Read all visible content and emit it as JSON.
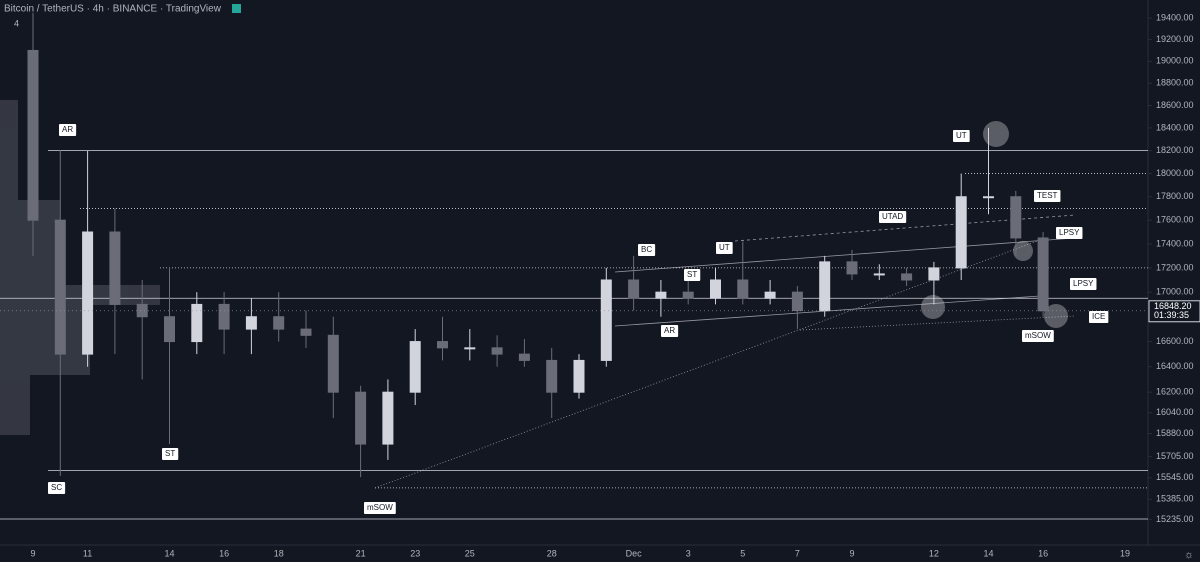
{
  "chart_data": {
    "type": "candlestick",
    "title": "Bitcoin / TetherUS · 4h · BINANCE · TradingView",
    "badge": "4",
    "categories": [
      "9",
      null,
      "11",
      null,
      null,
      "14",
      null,
      "16",
      null,
      "18",
      null,
      null,
      "21",
      null,
      "23",
      null,
      "25",
      null,
      null,
      "28",
      null,
      null,
      "Dec",
      null,
      "3",
      null,
      "5",
      null,
      "7",
      null,
      "9",
      null,
      null,
      "12",
      null,
      "14",
      null,
      "16",
      null,
      null,
      "19"
    ],
    "open": [
      19100,
      17600,
      16500,
      17500,
      16900,
      16800,
      16600,
      16900,
      16700,
      16800,
      16700,
      16650,
      16200,
      15800,
      16200,
      16600,
      16550,
      16550,
      16500,
      16450,
      16200,
      16450,
      17100,
      16950,
      17000,
      16950,
      17100,
      16950,
      17000,
      16850,
      17250,
      17150,
      17150,
      17100,
      17200,
      17800,
      17800,
      17450,
      null,
      null,
      null
    ],
    "high": [
      19450,
      18200,
      18200,
      17700,
      17100,
      17200,
      17000,
      17000,
      16950,
      17000,
      16850,
      16800,
      16250,
      16300,
      16700,
      16800,
      16700,
      16650,
      16620,
      16550,
      16500,
      17200,
      17300,
      17100,
      17150,
      17200,
      17420,
      17100,
      17050,
      17300,
      17350,
      17230,
      17200,
      17250,
      18000,
      18400,
      17850,
      17500,
      null,
      null,
      null
    ],
    "low": [
      17300,
      15560,
      16400,
      16500,
      16300,
      15800,
      16500,
      16500,
      16500,
      16600,
      16550,
      16000,
      15550,
      15680,
      16100,
      16450,
      16450,
      16400,
      16400,
      16000,
      16150,
      16400,
      16850,
      16800,
      16900,
      16900,
      16900,
      16900,
      16700,
      16800,
      17100,
      17100,
      17050,
      16900,
      17100,
      17650,
      17300,
      16800,
      null,
      null,
      null
    ],
    "close": [
      17600,
      16500,
      17500,
      16900,
      16800,
      16600,
      16900,
      16700,
      16800,
      16700,
      16650,
      16200,
      15800,
      16200,
      16600,
      16550,
      16550,
      16500,
      16450,
      16200,
      16450,
      17100,
      16950,
      17000,
      16950,
      17100,
      16950,
      17000,
      16850,
      17250,
      17150,
      17150,
      17100,
      17200,
      17800,
      17800,
      17450,
      16848.2,
      null,
      null,
      null
    ],
    "up_color": "#d1d4dc",
    "down_color": "#6a6d78",
    "log_scale": true,
    "ylim": [
      15050,
      19570
    ],
    "yticks": [
      {
        "value": 19400,
        "label": "19400.00"
      },
      {
        "value": 19200,
        "label": "19200.00"
      },
      {
        "value": 19000,
        "label": "19000.00"
      },
      {
        "value": 18800,
        "label": "18800.00"
      },
      {
        "value": 18600,
        "label": "18600.00"
      },
      {
        "value": 18400,
        "label": "18400.00"
      },
      {
        "value": 18200,
        "label": "18200.00"
      },
      {
        "value": 18000,
        "label": "18000.00"
      },
      {
        "value": 17800,
        "label": "17800.00"
      },
      {
        "value": 17600,
        "label": "17600.00"
      },
      {
        "value": 17400,
        "label": "17400.00"
      },
      {
        "value": 17200,
        "label": "17200.00"
      },
      {
        "value": 17000,
        "label": "17000.00"
      },
      {
        "value": 16800,
        "label": "16800.00"
      },
      {
        "value": 16600,
        "label": "16600.00"
      },
      {
        "value": 16400,
        "label": "16400.00"
      },
      {
        "value": 16200,
        "label": "16200.00"
      },
      {
        "value": 16040,
        "label": "16040.00"
      },
      {
        "value": 15880,
        "label": "15880.00"
      },
      {
        "value": 15705,
        "label": "15705.00"
      },
      {
        "value": 15545,
        "label": "15545.00"
      },
      {
        "value": 15385,
        "label": "15385.00"
      },
      {
        "value": 15235,
        "label": "15235.00"
      }
    ],
    "hlines": [
      {
        "value": 18200,
        "style": "solid"
      },
      {
        "value": 18000,
        "style": "dotted"
      },
      {
        "value": 17700,
        "style": "dotted"
      },
      {
        "value": 17200,
        "style": "dotted"
      },
      {
        "value": 16950,
        "style": "solid"
      },
      {
        "value": 15600,
        "style": "solid"
      },
      {
        "value": 15470,
        "style": "dotted"
      },
      {
        "value": 15240,
        "style": "solid"
      }
    ],
    "last_price": {
      "value": 16848.2,
      "label": "16848.20",
      "timer": "01:39:35"
    },
    "annotations": [
      "AR",
      "SC",
      "ST",
      "mSOW",
      "BC",
      "ST",
      "AR",
      "UT",
      "UTAD",
      "UT",
      "TEST",
      "LPSY",
      "LPSY",
      "mSOW",
      "ICE"
    ]
  }
}
